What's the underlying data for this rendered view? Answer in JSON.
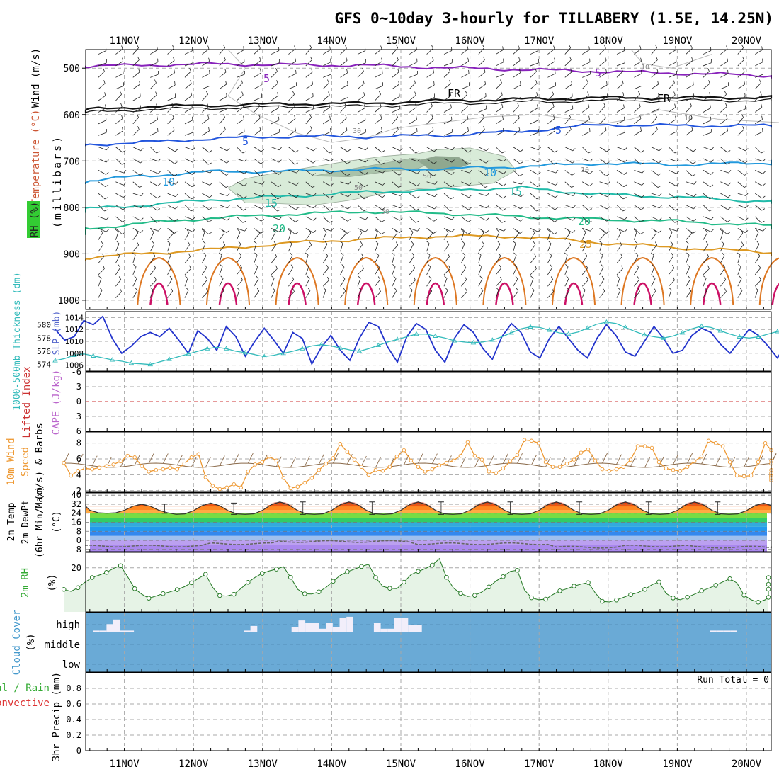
{
  "title": "GFS 0~10day 3-hourly for TILLABERY (1.5E, 14.25N)",
  "dates": [
    "11NOV",
    "12NOV",
    "13NOV",
    "14NOV",
    "15NOV",
    "16NOV",
    "17NOV",
    "18NOV",
    "19NOV",
    "20NOV"
  ],
  "colors": {
    "grid": "#a8a8a8",
    "slp": "#2233cc",
    "thickness": "#33bbbb",
    "lifted": "#cc3333",
    "wind": "#ee9933",
    "rh": "#33aa33",
    "cloud": "#6aaad6",
    "temp_purple": "#8822bb",
    "temp_black": "#111111",
    "temp_blue": "#2255dd",
    "temp_lightblue": "#2299dd",
    "temp_teal": "#22bbaa",
    "temp_green": "#22bb88",
    "temp_orange": "#dd9922",
    "temp_red": "#cc1166"
  },
  "panels": {
    "upper": {
      "labels": {
        "wind": "Wind (m/s)",
        "temperature": "Temperature (°C)",
        "rh": "RH (%)",
        "millibars": "(millibars)"
      },
      "pressure_ticks": [
        "500",
        "600",
        "700",
        "800",
        "900",
        "1000"
      ],
      "contour_labels": {
        "fr1": "FR",
        "fr2": "FR",
        "m5a": "5",
        "m5b": "5",
        "p5a": "5",
        "p5b": "5",
        "p10a": "10",
        "p10b": "10",
        "p15a": "15",
        "p15b": "15",
        "p20a": "20",
        "p20b": "20",
        "p25": "25",
        "rh10a": "10",
        "rh10b": "10",
        "rh10c": "10",
        "rh30": "30",
        "rh50a": "50",
        "rh50b": "50",
        "rh50c": "50"
      }
    },
    "slp": {
      "labels": {
        "thickness": "1000-500mb Thickness (dm)",
        "slp": "SLP (mb)"
      },
      "slp_ticks": [
        "1014",
        "1012",
        "1010",
        "1008",
        "1006"
      ],
      "thick_ticks": [
        "580",
        "578",
        "576",
        "574"
      ]
    },
    "cape": {
      "labels": {
        "lifted": "Lifted Index",
        "cape": "CAPE (J/kg)"
      },
      "ticks": [
        "-6",
        "-3",
        "0",
        "3",
        "6"
      ]
    },
    "wind10m": {
      "labels": {
        "line1": "10m Wind",
        "line2": "Speed",
        "line3": "(m/s) & Barbs"
      },
      "ticks": [
        "8",
        "6",
        "4",
        "2"
      ]
    },
    "temp": {
      "labels": {
        "line1": "2m Temp",
        "line2": "2m DewPt",
        "line3": "(6hr Min/Max)",
        "line4": "(°C)"
      },
      "ticks": [
        "40",
        "32",
        "24",
        "16",
        "8",
        "0",
        "-8"
      ]
    },
    "rh": {
      "labels": {
        "line1": "2m RH",
        "unit": "(%)"
      },
      "ticks": [
        "20"
      ]
    },
    "cloud": {
      "labels": {
        "title": "Cloud Cover",
        "unit": "(%)"
      },
      "levels": [
        "high",
        "middle",
        "low"
      ]
    },
    "precip": {
      "labels": {
        "line1": "Total / Rain",
        "line2": "Convective",
        "line3": "3hr Precip (mm)"
      },
      "ticks": [
        "0.8",
        "0.6",
        "0.4",
        "0.2",
        "0"
      ],
      "run_total": "Run Total = 0"
    }
  },
  "chart_data": [
    {
      "type": "line",
      "title": "Temperature (°C) cross-section, 500-1000 mb",
      "y_label": "millibars",
      "y_range": [
        460,
        1020
      ],
      "series": [
        {
          "name": "-5°C isotherm",
          "pressure_mb": [
            497,
            494,
            491,
            493,
            494,
            499,
            503,
            507,
            511,
            515,
            521
          ]
        },
        {
          "name": "0°C (FR) isotherm",
          "pressure_mb": [
            593,
            584,
            580,
            577,
            576,
            570,
            567,
            564,
            564,
            563,
            561
          ]
        },
        {
          "name": "5°C isotherm",
          "pressure_mb": [
            667,
            661,
            652,
            647,
            648,
            645,
            636,
            622,
            624,
            624,
            626
          ]
        },
        {
          "name": "10°C isotherm",
          "pressure_mb": [
            749,
            734,
            723,
            722,
            718,
            717,
            712,
            705,
            708,
            705,
            700
          ]
        },
        {
          "name": "15°C isotherm",
          "pressure_mb": [
            807,
            797,
            784,
            776,
            767,
            762,
            758,
            772,
            778,
            786,
            789
          ]
        },
        {
          "name": "20°C isotherm",
          "pressure_mb": [
            853,
            836,
            823,
            815,
            809,
            813,
            820,
            826,
            830,
            838,
            846
          ]
        },
        {
          "name": "25°C isotherm",
          "pressure_mb": [
            913,
            901,
            891,
            877,
            868,
            862,
            863,
            876,
            887,
            895,
            905
          ]
        }
      ]
    },
    {
      "type": "line",
      "title": "SLP (mb) and 1000-500mb Thickness (dm)",
      "x_step_hours": 6,
      "series": [
        {
          "name": "SLP (mb)",
          "axis": "left",
          "values": [
            1012.0,
            1010.2,
            1010.8,
            1013.5,
            1012.8,
            1014.2,
            1010.5,
            1008.0,
            1009.2,
            1010.8,
            1011.5,
            1010.8,
            1012.2,
            1010.2,
            1008.0,
            1011.8,
            1010.5,
            1008.5,
            1012.5,
            1010.8,
            1007.5,
            1010.0,
            1012.2,
            1010.2,
            1008.0,
            1011.5,
            1010.5,
            1006.2,
            1009.0,
            1011.0,
            1008.5,
            1006.8,
            1010.5,
            1013.2,
            1012.5,
            1009.0,
            1006.5,
            1010.8,
            1013.0,
            1012.0,
            1008.5,
            1006.5,
            1010.5,
            1012.8,
            1011.5,
            1008.8,
            1007.0,
            1010.8,
            1013.0,
            1011.5,
            1008.2,
            1007.2,
            1010.5,
            1012.5,
            1010.5,
            1008.5,
            1007.2,
            1010.5,
            1012.8,
            1011.0,
            1008.2,
            1007.5,
            1010.0,
            1012.5,
            1010.5,
            1008.0,
            1008.5,
            1011.0,
            1012.2,
            1011.5,
            1009.5,
            1008.0,
            1010.0,
            1012.0,
            1011.0,
            1009.2,
            1007.2,
            1010.0,
            1011.5,
            1011.0,
            1009.2,
            1010.8
          ]
        },
        {
          "name": "1000-500mb Thickness (dm)",
          "axis": "right",
          "values": [
            574.6,
            574.9,
            575.4,
            575.6,
            575.3,
            575.0,
            574.7,
            574.5,
            574.2,
            574.1,
            574.0,
            574.4,
            574.8,
            575.2,
            575.6,
            576.0,
            576.4,
            576.6,
            576.4,
            576.0,
            575.8,
            575.5,
            575.2,
            575.4,
            575.7,
            576.0,
            576.4,
            576.8,
            577.0,
            576.8,
            576.5,
            576.2,
            576.0,
            576.4,
            576.9,
            577.4,
            577.8,
            578.2,
            578.6,
            578.6,
            578.3,
            578.0,
            577.6,
            577.4,
            577.3,
            577.4,
            577.7,
            578.2,
            578.8,
            579.4,
            579.7,
            579.6,
            579.2,
            578.8,
            578.6,
            578.9,
            579.5,
            580.1,
            580.4,
            580.2,
            579.6,
            579.0,
            578.5,
            578.2,
            578.0,
            578.3,
            578.8,
            579.4,
            579.8,
            579.6,
            579.1,
            578.6,
            578.2,
            578.0,
            578.2,
            578.6,
            579.0,
            579.3,
            579.0,
            578.5,
            578.2,
            578.0
          ]
        }
      ],
      "ylim_left": [
        1005,
        1015
      ],
      "ylim_right": [
        573,
        582
      ]
    },
    {
      "type": "line",
      "title": "Lifted Index / CAPE",
      "series": [
        {
          "name": "Lifted Index",
          "values": []
        }
      ],
      "ylim": [
        6,
        -6
      ]
    },
    {
      "type": "line",
      "title": "10m Wind Speed (m/s)",
      "x_step_hours": 3,
      "series": [
        {
          "name": "10m Wind Speed (m/s)",
          "values": [
            5.5,
            3.9,
            4.5,
            4.8,
            4.7,
            4.9,
            5.1,
            5.3,
            5.7,
            6.4,
            6.2,
            5.1,
            4.4,
            4.6,
            4.7,
            4.9,
            4.7,
            5.4,
            6.2,
            6.6,
            3.7,
            2.6,
            2.2,
            2.4,
            2.8,
            2.4,
            4.4,
            5.3,
            5.6,
            6.3,
            5.8,
            3.6,
            2.3,
            2.5,
            3.0,
            3.6,
            4.6,
            5.4,
            6.1,
            7.9,
            6.9,
            5.9,
            5.0,
            4.0,
            4.6,
            4.5,
            5.0,
            6.3,
            7.1,
            5.8,
            5.0,
            4.4,
            4.7,
            5.2,
            5.5,
            5.8,
            6.4,
            8.1,
            6.4,
            5.9,
            4.4,
            4.2,
            4.8,
            5.7,
            6.5,
            8.4,
            8.3,
            8.0,
            5.6,
            5.0,
            5.0,
            5.4,
            5.9,
            6.8,
            7.2,
            5.8,
            4.7,
            4.5,
            4.7,
            5.0,
            5.9,
            7.6,
            7.6,
            7.4,
            5.6,
            4.8,
            4.6,
            4.5,
            5.0,
            5.7,
            6.3,
            8.3,
            8.0,
            7.6,
            5.6,
            3.9,
            3.8,
            3.9,
            5.6,
            8.0,
            7.1,
            5.8,
            4.2,
            3.9,
            3.8,
            3.3,
            3.6,
            4.6,
            5.4
          ]
        }
      ],
      "ylim": [
        1.8,
        9.4
      ]
    },
    {
      "type": "line",
      "title": "2m Temp / 2m DewPt / 6hr Min/Max (°C)",
      "series": [
        {
          "name": "2m Temp daily max (°C)",
          "values": [
            32,
            33,
            34,
            34,
            34,
            34,
            34,
            34,
            34,
            33
          ]
        },
        {
          "name": "2m Temp daily min (°C)",
          "values": [
            24,
            23,
            23,
            23,
            23,
            23,
            23,
            23,
            23,
            23
          ]
        },
        {
          "name": "2m DewPt (°C)",
          "values": [
            -5,
            -5,
            -3,
            -1,
            -1,
            -3,
            -3,
            -6,
            -5,
            -6
          ]
        }
      ],
      "ylim": [
        -10,
        42
      ]
    },
    {
      "type": "line",
      "title": "2m RH (%)",
      "x_step_hours": 3,
      "series": [
        {
          "name": "2m RH (%)",
          "values": [
            10.2,
            9.3,
            11.0,
            13.5,
            15.6,
            16.7,
            17.9,
            19.7,
            21.0,
            16.0,
            10.5,
            8.0,
            6.2,
            7.2,
            8.3,
            9.1,
            10.1,
            11.4,
            13.2,
            15.2,
            17.1,
            11.1,
            7.4,
            7.2,
            8.0,
            10.6,
            13.4,
            15.7,
            17.5,
            18.6,
            19.4,
            20.5,
            15.7,
            10.3,
            8.2,
            8.1,
            9.1,
            11.1,
            13.9,
            16.6,
            18.2,
            19.4,
            20.6,
            21.6,
            15.6,
            11.6,
            10.7,
            10.5,
            13.5,
            16.9,
            18.4,
            19.6,
            21.2,
            24.2,
            15.7,
            10.8,
            8.4,
            7.0,
            7.5,
            9.0,
            11.3,
            14.0,
            16.0,
            18.4,
            18.9,
            10.0,
            6.4,
            5.5,
            5.8,
            7.8,
            9.5,
            10.5,
            11.7,
            12.6,
            13.3,
            8.6,
            4.8,
            4.5,
            5.4,
            6.6,
            7.8,
            8.7,
            10.2,
            12.3,
            13.6,
            8.4,
            6.3,
            5.5,
            6.7,
            8.0,
            9.5,
            10.7,
            12.1,
            13.6,
            15.0,
            13.1,
            7.6,
            5.5,
            4.4,
            5.5,
            6.6,
            8.8,
            10.3,
            11.5,
            12.5,
            13.5,
            15.6
          ]
        }
      ],
      "ylim": [
        0,
        27
      ]
    },
    {
      "type": "bar",
      "title": "Cloud Cover (%) — high level",
      "x_step_hours": 3,
      "series": [
        {
          "name": "high cloud (%)",
          "values": [
            10,
            10,
            45,
            70,
            10,
            10,
            0,
            0,
            0,
            0,
            0,
            0,
            0,
            0,
            0,
            0,
            0,
            0,
            0,
            0,
            0,
            0,
            10,
            35,
            0,
            0,
            0,
            0,
            0,
            30,
            65,
            50,
            50,
            20,
            50,
            30,
            80,
            85,
            0,
            0,
            0,
            50,
            20,
            20,
            80,
            80,
            40,
            40,
            0,
            0,
            0,
            0,
            0,
            0,
            0,
            0,
            0,
            0,
            0,
            0,
            0,
            0,
            0,
            0,
            0,
            0,
            0,
            0,
            0,
            0,
            0,
            0,
            0,
            0,
            0,
            0,
            0,
            0,
            0,
            0,
            0,
            0,
            0,
            0,
            0,
            0,
            0,
            0,
            0,
            0,
            10,
            10,
            10,
            10,
            0,
            0,
            0,
            0,
            0,
            0
          ]
        }
      ]
    },
    {
      "type": "bar",
      "title": "3hr Precip (mm)",
      "series": [
        {
          "name": "Total / Rain",
          "values": []
        }
      ],
      "ylim": [
        0,
        1.0
      ]
    }
  ]
}
